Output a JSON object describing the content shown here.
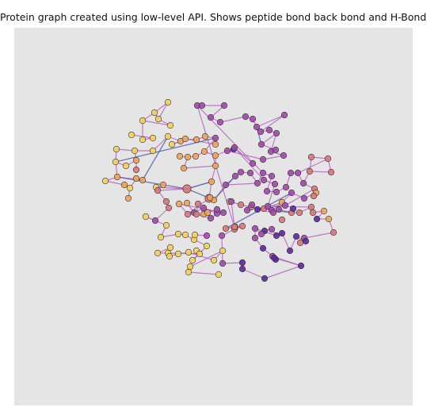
{
  "figure": {
    "title": "Protein graph created using low-level API. Shows peptide bond back bond and H-Bonds",
    "background": "#e5e5e5"
  },
  "colors": {
    "peptide_edge": "#b565c2",
    "hbond_edge": "#5b5fa8",
    "node_outline": "#333333",
    "colormap": "plasma"
  }
}
